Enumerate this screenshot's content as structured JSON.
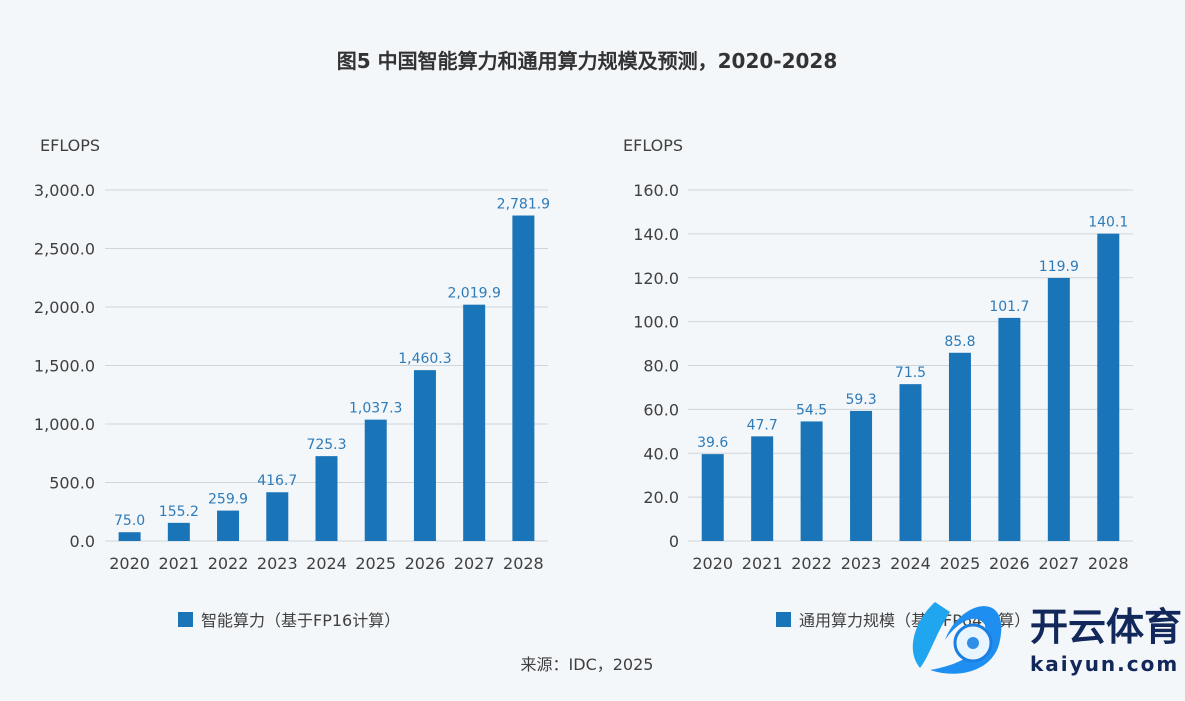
{
  "title": "图5 中国智能算力和通用算力规模及预测，2020-2028",
  "source": "来源：IDC，2025",
  "colors": {
    "bar": "#1a74b8",
    "label": "#2f7bb8",
    "grid": "#cfd5da",
    "text": "#404040"
  },
  "watermark": {
    "cn": "开云体育",
    "en": "kaiyun.com"
  },
  "chart_data": [
    {
      "type": "bar",
      "ylabel": "EFLOPS",
      "categories": [
        "2020",
        "2021",
        "2022",
        "2023",
        "2024",
        "2025",
        "2026",
        "2027",
        "2028"
      ],
      "values": [
        75.0,
        155.2,
        259.9,
        416.7,
        725.3,
        1037.3,
        1460.3,
        2019.9,
        2781.9
      ],
      "data_labels": [
        "75.0",
        "155.2",
        "259.9",
        "416.7",
        "725.3",
        "1,037.3",
        "1,460.3",
        "2,019.9",
        "2,781.9"
      ],
      "ylim": [
        0,
        3000
      ],
      "yticks": [
        0,
        500,
        1000,
        1500,
        2000,
        2500,
        3000
      ],
      "ytick_labels": [
        "0.0",
        "500.0",
        "1,000.0",
        "1,500.0",
        "2,000.0",
        "2,500.0",
        "3,000.0"
      ],
      "legend": "智能算力（基于FP16计算）",
      "grid": true
    },
    {
      "type": "bar",
      "ylabel": "EFLOPS",
      "categories": [
        "2020",
        "2021",
        "2022",
        "2023",
        "2024",
        "2025",
        "2026",
        "2027",
        "2028"
      ],
      "values": [
        39.6,
        47.7,
        54.5,
        59.3,
        71.5,
        85.8,
        101.7,
        119.9,
        140.1
      ],
      "data_labels": [
        "39.6",
        "47.7",
        "54.5",
        "59.3",
        "71.5",
        "85.8",
        "101.7",
        "119.9",
        "140.1"
      ],
      "ylim": [
        0,
        160
      ],
      "yticks": [
        0,
        20,
        40,
        60,
        80,
        100,
        120,
        140,
        160
      ],
      "ytick_labels": [
        "0",
        "20.0",
        "40.0",
        "60.0",
        "80.0",
        "100.0",
        "120.0",
        "140.0",
        "160.0"
      ],
      "legend": "通用算力规模（基于FP64计算）",
      "grid": true
    }
  ]
}
